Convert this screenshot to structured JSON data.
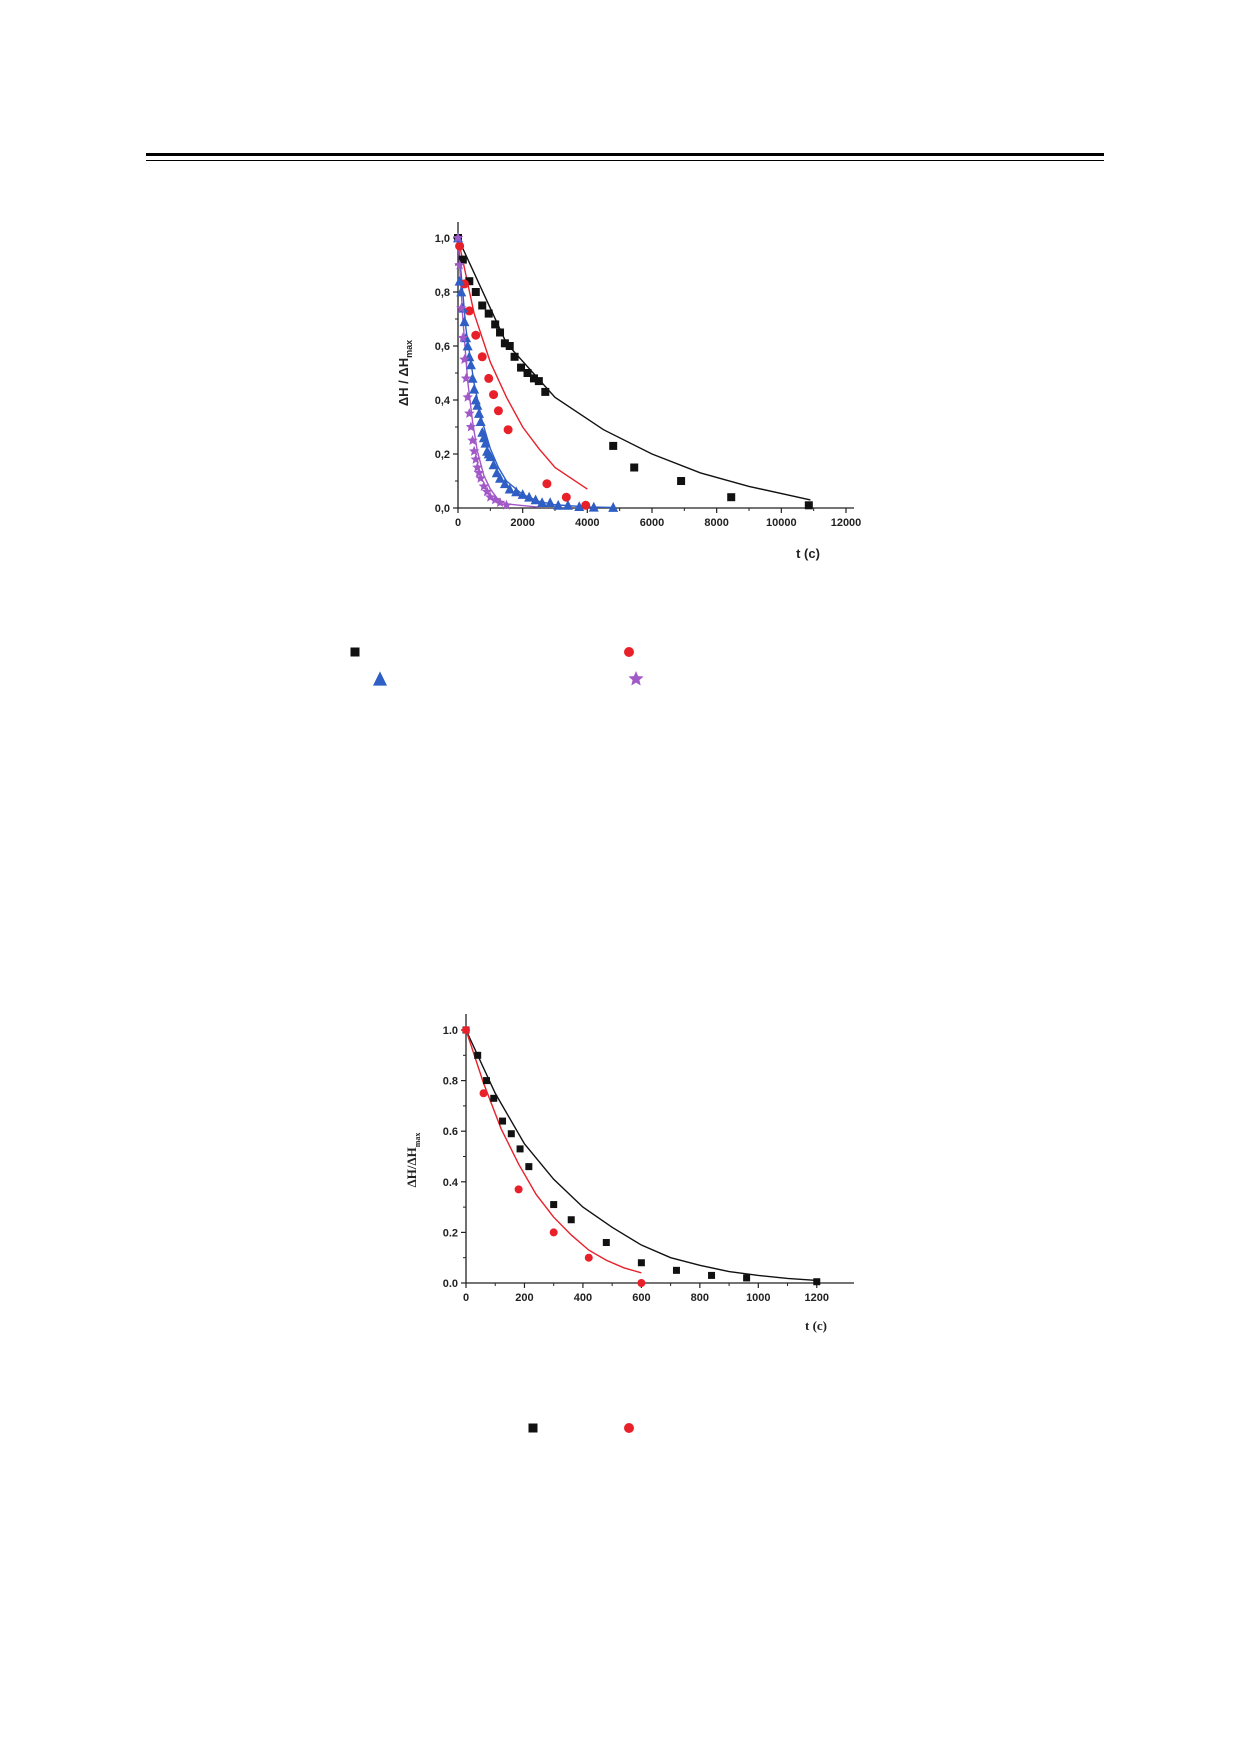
{
  "chart_data": [
    {
      "type": "scatter",
      "decimal_comma": true,
      "xlabel": "t (c)",
      "ylabel_main": "ΔH / ΔH",
      "ylabel_sub": "max",
      "xlim": [
        0,
        12000
      ],
      "ylim": [
        0,
        1.0
      ],
      "xticks": [
        "0",
        "2000",
        "4000",
        "6000",
        "8000",
        "10000",
        "12000"
      ],
      "yticks": [
        "0,0",
        "0,2",
        "0,4",
        "0,6",
        "0,8",
        "1,0"
      ],
      "series": [
        {
          "marker": "square",
          "color": "#111111",
          "points": [
            [
              0,
              1.0
            ],
            [
              150,
              0.92
            ],
            [
              350,
              0.84
            ],
            [
              550,
              0.8
            ],
            [
              750,
              0.75
            ],
            [
              950,
              0.72
            ],
            [
              1150,
              0.68
            ],
            [
              1300,
              0.65
            ],
            [
              1450,
              0.61
            ],
            [
              1600,
              0.6
            ],
            [
              1750,
              0.56
            ],
            [
              1950,
              0.52
            ],
            [
              2150,
              0.5
            ],
            [
              2350,
              0.48
            ],
            [
              2500,
              0.47
            ],
            [
              2700,
              0.43
            ],
            [
              4800,
              0.23
            ],
            [
              5450,
              0.15
            ],
            [
              6900,
              0.1
            ],
            [
              8450,
              0.04
            ],
            [
              10850,
              0.01
            ]
          ],
          "fit": [
            [
              0,
              1.0
            ],
            [
              1500,
              0.61
            ],
            [
              3000,
              0.41
            ],
            [
              4500,
              0.29
            ],
            [
              6000,
              0.2
            ],
            [
              7500,
              0.13
            ],
            [
              9000,
              0.08
            ],
            [
              10900,
              0.03
            ]
          ]
        },
        {
          "marker": "circle",
          "color": "#e8202a",
          "points": [
            [
              50,
              0.97
            ],
            [
              200,
              0.83
            ],
            [
              350,
              0.73
            ],
            [
              550,
              0.64
            ],
            [
              750,
              0.56
            ],
            [
              950,
              0.48
            ],
            [
              1100,
              0.42
            ],
            [
              1250,
              0.36
            ],
            [
              1550,
              0.29
            ],
            [
              2750,
              0.09
            ],
            [
              3350,
              0.04
            ],
            [
              3950,
              0.01
            ]
          ],
          "fit": [
            [
              0,
              1.0
            ],
            [
              500,
              0.72
            ],
            [
              1000,
              0.54
            ],
            [
              1500,
              0.41
            ],
            [
              2000,
              0.3
            ],
            [
              2500,
              0.22
            ],
            [
              3000,
              0.15
            ],
            [
              3500,
              0.11
            ],
            [
              4000,
              0.07
            ]
          ]
        },
        {
          "marker": "triangle",
          "color": "#2f5fc4",
          "points": [
            [
              0,
              1.0
            ],
            [
              50,
              0.84
            ],
            [
              100,
              0.8
            ],
            [
              150,
              0.74
            ],
            [
              200,
              0.69
            ],
            [
              250,
              0.63
            ],
            [
              300,
              0.6
            ],
            [
              350,
              0.56
            ],
            [
              400,
              0.53
            ],
            [
              450,
              0.48
            ],
            [
              500,
              0.44
            ],
            [
              550,
              0.4
            ],
            [
              600,
              0.38
            ],
            [
              650,
              0.35
            ],
            [
              700,
              0.32
            ],
            [
              750,
              0.28
            ],
            [
              800,
              0.26
            ],
            [
              850,
              0.24
            ],
            [
              900,
              0.21
            ],
            [
              950,
              0.2
            ],
            [
              1000,
              0.19
            ],
            [
              1100,
              0.16
            ],
            [
              1200,
              0.13
            ],
            [
              1300,
              0.11
            ],
            [
              1450,
              0.09
            ],
            [
              1600,
              0.07
            ],
            [
              1800,
              0.06
            ],
            [
              2000,
              0.05
            ],
            [
              2200,
              0.04
            ],
            [
              2400,
              0.03
            ],
            [
              2600,
              0.02
            ],
            [
              2850,
              0.02
            ],
            [
              3100,
              0.01
            ],
            [
              3400,
              0.01
            ],
            [
              3750,
              0.005
            ],
            [
              4200,
              0.003
            ],
            [
              4800,
              0.002
            ]
          ],
          "fit": [
            [
              0,
              1.0
            ],
            [
              250,
              0.66
            ],
            [
              500,
              0.46
            ],
            [
              750,
              0.32
            ],
            [
              1000,
              0.22
            ],
            [
              1250,
              0.15
            ],
            [
              1500,
              0.1
            ],
            [
              2000,
              0.05
            ],
            [
              2500,
              0.025
            ],
            [
              3000,
              0.012
            ],
            [
              4000,
              0.004
            ],
            [
              4800,
              0.002
            ]
          ]
        },
        {
          "marker": "star",
          "color": "#a259c8",
          "points": [
            [
              0,
              1.0
            ],
            [
              50,
              0.9
            ],
            [
              100,
              0.74
            ],
            [
              150,
              0.63
            ],
            [
              200,
              0.55
            ],
            [
              250,
              0.48
            ],
            [
              300,
              0.41
            ],
            [
              350,
              0.35
            ],
            [
              400,
              0.3
            ],
            [
              450,
              0.25
            ],
            [
              500,
              0.21
            ],
            [
              550,
              0.18
            ],
            [
              600,
              0.15
            ],
            [
              650,
              0.13
            ],
            [
              700,
              0.11
            ],
            [
              800,
              0.08
            ],
            [
              900,
              0.06
            ],
            [
              1000,
              0.04
            ],
            [
              1150,
              0.03
            ],
            [
              1300,
              0.02
            ],
            [
              1500,
              0.01
            ]
          ],
          "fit": [
            [
              0,
              1.0
            ],
            [
              150,
              0.7
            ],
            [
              300,
              0.47
            ],
            [
              450,
              0.32
            ],
            [
              600,
              0.21
            ],
            [
              800,
              0.12
            ],
            [
              1000,
              0.07
            ],
            [
              1250,
              0.03
            ],
            [
              1500,
              0.015
            ],
            [
              2500,
              0.003
            ]
          ]
        }
      ]
    },
    {
      "type": "scatter",
      "decimal_comma": false,
      "xlabel": "t (c)",
      "ylabel_main": "ΔH/ΔH",
      "ylabel_sub": "max",
      "xlim": [
        0,
        1300
      ],
      "ylim": [
        0,
        1.0
      ],
      "xticks": [
        "0",
        "200",
        "400",
        "600",
        "800",
        "1000",
        "1200"
      ],
      "yticks": [
        "0.0",
        "0.2",
        "0.4",
        "0.6",
        "0.8",
        "1.0"
      ],
      "series": [
        {
          "marker": "square",
          "color": "#111111",
          "points": [
            [
              0,
              1.0
            ],
            [
              40,
              0.9
            ],
            [
              70,
              0.8
            ],
            [
              95,
              0.73
            ],
            [
              125,
              0.64
            ],
            [
              155,
              0.59
            ],
            [
              185,
              0.53
            ],
            [
              215,
              0.46
            ],
            [
              300,
              0.31
            ],
            [
              360,
              0.25
            ],
            [
              480,
              0.16
            ],
            [
              600,
              0.08
            ],
            [
              720,
              0.05
            ],
            [
              840,
              0.03
            ],
            [
              960,
              0.02
            ],
            [
              1200,
              0.005
            ]
          ],
          "fit": [
            [
              0,
              1.0
            ],
            [
              100,
              0.75
            ],
            [
              200,
              0.55
            ],
            [
              300,
              0.41
            ],
            [
              400,
              0.3
            ],
            [
              500,
              0.22
            ],
            [
              600,
              0.15
            ],
            [
              700,
              0.1
            ],
            [
              800,
              0.07
            ],
            [
              900,
              0.045
            ],
            [
              1000,
              0.03
            ],
            [
              1100,
              0.018
            ],
            [
              1200,
              0.01
            ]
          ]
        },
        {
          "marker": "circle",
          "color": "#e8202a",
          "points": [
            [
              0,
              1.0
            ],
            [
              60,
              0.75
            ],
            [
              180,
              0.37
            ],
            [
              300,
              0.2
            ],
            [
              420,
              0.1
            ],
            [
              600,
              0.0
            ]
          ],
          "fit": [
            [
              0,
              1.0
            ],
            [
              60,
              0.79
            ],
            [
              120,
              0.61
            ],
            [
              180,
              0.47
            ],
            [
              240,
              0.35
            ],
            [
              300,
              0.26
            ],
            [
              360,
              0.19
            ],
            [
              420,
              0.13
            ],
            [
              480,
              0.09
            ],
            [
              540,
              0.06
            ],
            [
              600,
              0.04
            ]
          ]
        }
      ]
    }
  ],
  "legends": [
    {
      "items": [
        {
          "marker": "square",
          "color": "#111111"
        },
        {
          "marker": "circle",
          "color": "#e8202a"
        },
        {
          "marker": "triangle",
          "color": "#2f5fc4"
        },
        {
          "marker": "star",
          "color": "#a259c8"
        }
      ]
    },
    {
      "items": [
        {
          "marker": "square",
          "color": "#111111"
        },
        {
          "marker": "circle",
          "color": "#e8202a"
        }
      ]
    }
  ]
}
